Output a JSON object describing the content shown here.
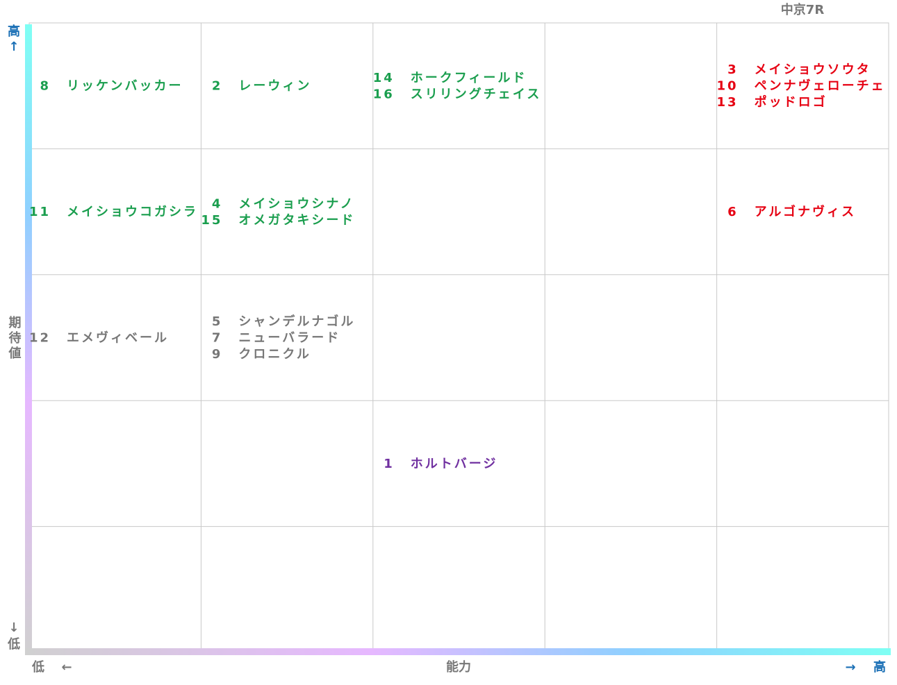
{
  "title": "中京7R",
  "y_axis": {
    "label": "期待値",
    "high": "高",
    "low": "低"
  },
  "x_axis": {
    "label": "能力",
    "high": "高",
    "low": "低"
  },
  "grid": {
    "rows": 5,
    "cols": 5
  },
  "cells": [
    {
      "row": 0,
      "col": 0,
      "color": "#1a9e4e",
      "entries": [
        {
          "num": "8",
          "name": "リッケンバッカー"
        }
      ]
    },
    {
      "row": 0,
      "col": 1,
      "color": "#1a9e4e",
      "entries": [
        {
          "num": "2",
          "name": "レーウィン"
        }
      ]
    },
    {
      "row": 0,
      "col": 2,
      "color": "#1a9e4e",
      "entries": [
        {
          "num": "14",
          "name": "ホークフィールド"
        },
        {
          "num": "16",
          "name": "スリリングチェイス"
        }
      ]
    },
    {
      "row": 0,
      "col": 4,
      "color": "#e60012",
      "entries": [
        {
          "num": "3",
          "name": "メイショウソウタ"
        },
        {
          "num": "10",
          "name": "ペンナヴェローチェ"
        },
        {
          "num": "13",
          "name": "ポッドロゴ"
        }
      ]
    },
    {
      "row": 1,
      "col": 0,
      "color": "#1a9e4e",
      "entries": [
        {
          "num": "11",
          "name": "メイショウコガシラ"
        }
      ]
    },
    {
      "row": 1,
      "col": 1,
      "color": "#1a9e4e",
      "entries": [
        {
          "num": "4",
          "name": "メイショウシナノ"
        },
        {
          "num": "15",
          "name": "オメガタキシード"
        }
      ]
    },
    {
      "row": 1,
      "col": 4,
      "color": "#e60012",
      "entries": [
        {
          "num": "6",
          "name": "アルゴナヴィス"
        }
      ]
    },
    {
      "row": 2,
      "col": 0,
      "color": "#777777",
      "entries": [
        {
          "num": "12",
          "name": "エメヴィベール"
        }
      ]
    },
    {
      "row": 2,
      "col": 1,
      "color": "#777777",
      "entries": [
        {
          "num": "5",
          "name": "シャンデルナゴル"
        },
        {
          "num": "7",
          "name": "ニューバラード"
        },
        {
          "num": "9",
          "name": "クロニクル"
        }
      ]
    },
    {
      "row": 3,
      "col": 2,
      "color": "#7030a0",
      "entries": [
        {
          "num": "1",
          "name": "ホルトバージ"
        }
      ]
    }
  ]
}
